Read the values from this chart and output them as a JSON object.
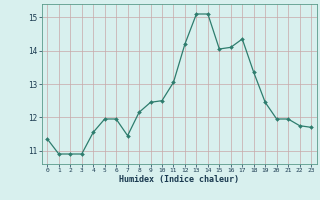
{
  "x": [
    0,
    1,
    2,
    3,
    4,
    5,
    6,
    7,
    8,
    9,
    10,
    11,
    12,
    13,
    14,
    15,
    16,
    17,
    18,
    19,
    20,
    21,
    22,
    23
  ],
  "y": [
    11.35,
    10.9,
    10.9,
    10.9,
    11.55,
    11.95,
    11.95,
    11.45,
    12.15,
    12.45,
    12.5,
    13.05,
    14.2,
    15.1,
    15.1,
    14.05,
    14.1,
    14.35,
    13.35,
    12.45,
    11.95,
    11.95,
    11.75,
    11.7
  ],
  "line_color": "#2e7d6e",
  "marker": "D",
  "marker_size": 2.0,
  "bg_color": "#d8f0ee",
  "grid_color": "#c8a8a8",
  "xlabel": "Humidex (Indice chaleur)",
  "xlim": [
    -0.5,
    23.5
  ],
  "ylim": [
    10.6,
    15.4
  ],
  "yticks": [
    11,
    12,
    13,
    14,
    15
  ],
  "xtick_labels": [
    "0",
    "1",
    "2",
    "3",
    "4",
    "5",
    "6",
    "7",
    "8",
    "9",
    "10",
    "11",
    "12",
    "13",
    "14",
    "15",
    "16",
    "17",
    "18",
    "19",
    "20",
    "21",
    "22",
    "23"
  ]
}
